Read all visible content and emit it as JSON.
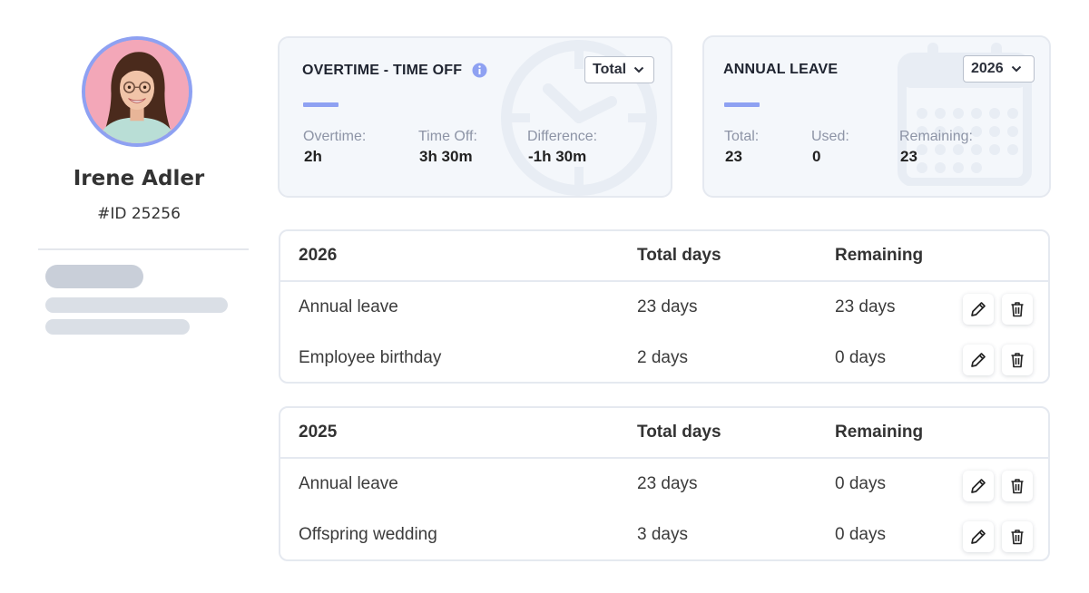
{
  "profile": {
    "name": "Irene Adler",
    "employee_id": "#ID 25256"
  },
  "overtime_card": {
    "title": "OVERTIME - TIME OFF",
    "filter_value": "Total",
    "stats": [
      {
        "label": "Overtime:",
        "value": "2h"
      },
      {
        "label": "Time Off:",
        "value": "3h 30m"
      },
      {
        "label": "Difference:",
        "value": "-1h 30m"
      }
    ]
  },
  "leave_card": {
    "title": "ANNUAL LEAVE",
    "year_value": "2026",
    "stats": [
      {
        "label": "Total:",
        "value": "23"
      },
      {
        "label": "Used:",
        "value": "0"
      },
      {
        "label": "Remaining:",
        "value": "23"
      }
    ]
  },
  "tables": [
    {
      "year": "2026",
      "col_total": "Total days",
      "col_remaining": "Remaining",
      "rows": [
        {
          "type": "Annual leave",
          "total": "23 days",
          "remaining": "23 days"
        },
        {
          "type": "Employee birthday",
          "total": "2 days",
          "remaining": "0 days"
        }
      ]
    },
    {
      "year": "2025",
      "col_total": "Total days",
      "col_remaining": "Remaining",
      "rows": [
        {
          "type": "Annual leave",
          "total": "23 days",
          "remaining": "0 days"
        },
        {
          "type": "Offspring wedding",
          "total": "3 days",
          "remaining": "0 days"
        }
      ]
    }
  ],
  "icons": {
    "info": "info-icon",
    "edit": "pencil-icon",
    "delete": "trash-icon",
    "dropdown": "chevron-down-icon",
    "overtime_background": "clock-icon",
    "leave_background": "calendar-icon"
  },
  "colors": {
    "accent": "#8ea1f2",
    "info_icon": "#8ea1f2",
    "card_background": "#f4f7fb",
    "avatar_background": "#f3a7b8"
  }
}
